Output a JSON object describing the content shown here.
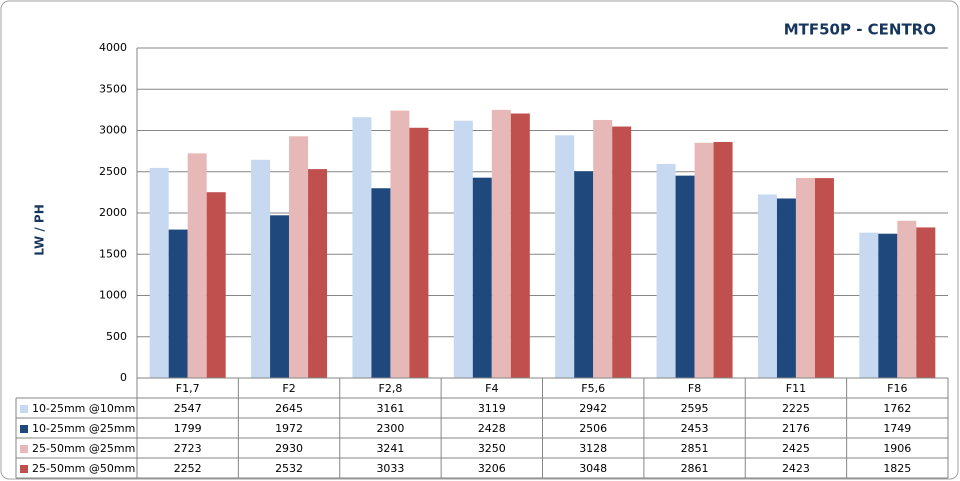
{
  "chart_data": {
    "type": "bar",
    "title": "MTF50P - CENTRO",
    "y_label": "LW / PH",
    "categories": [
      "F1,7",
      "F2",
      "F2,8",
      "F4",
      "F5,6",
      "F8",
      "F11",
      "F16"
    ],
    "series": [
      {
        "name": "10-25mm @10mm",
        "color": "#c6d9f1",
        "values": [
          2547,
          2645,
          3161,
          3119,
          2942,
          2595,
          2225,
          1762
        ]
      },
      {
        "name": "10-25mm @25mm",
        "color": "#1f497d",
        "values": [
          1799,
          1972,
          2300,
          2428,
          2506,
          2453,
          2176,
          1749
        ]
      },
      {
        "name": "25-50mm @25mm",
        "color": "#e6b9b8",
        "values": [
          2723,
          2930,
          3241,
          3250,
          3128,
          2851,
          2425,
          1906
        ]
      },
      {
        "name": "25-50mm @50mm",
        "color": "#c0504d",
        "values": [
          2252,
          2532,
          3033,
          3206,
          3048,
          2861,
          2423,
          1825
        ]
      }
    ],
    "ylim": [
      0,
      4000
    ],
    "yticks": [
      0,
      500,
      1000,
      1500,
      2000,
      2500,
      3000,
      3500,
      4000
    ],
    "grid": true
  }
}
